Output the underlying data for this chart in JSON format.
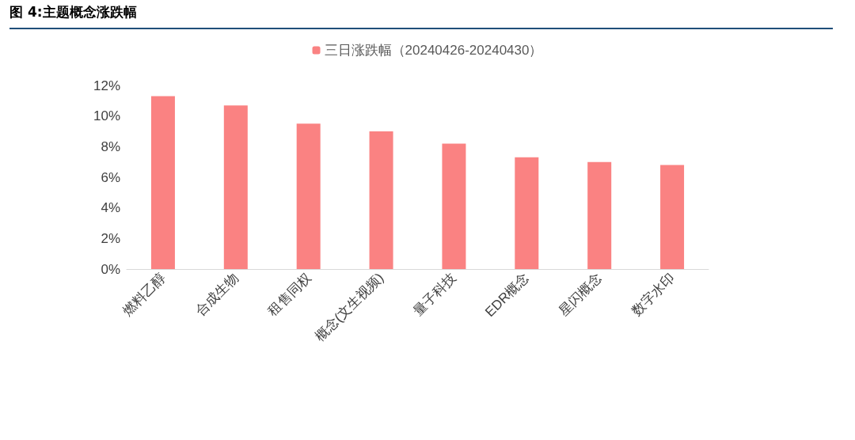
{
  "chart_data": {
    "type": "bar",
    "title": "图 4:主题概念涨跌幅",
    "categories": [
      "燃料乙醇",
      "合成生物",
      "租售同权",
      "概念(文生视频)",
      "量子科技",
      "EDR概念",
      "星闪概念",
      "数字水印"
    ],
    "series": [
      {
        "name": "三日涨跌幅（20240426-20240430）",
        "color": "#fa8282",
        "values": [
          11.3,
          10.7,
          9.5,
          9.0,
          8.2,
          7.3,
          7.0,
          6.8
        ]
      }
    ],
    "ylim": [
      0,
      12
    ],
    "yticks": [
      {
        "value": 0,
        "label": "0%"
      },
      {
        "value": 2,
        "label": "2%"
      },
      {
        "value": 4,
        "label": "4%"
      },
      {
        "value": 6,
        "label": "6%"
      },
      {
        "value": 8,
        "label": "8%"
      },
      {
        "value": 10,
        "label": "10%"
      },
      {
        "value": 12,
        "label": "12%"
      }
    ],
    "grid": false,
    "legend": "top"
  }
}
